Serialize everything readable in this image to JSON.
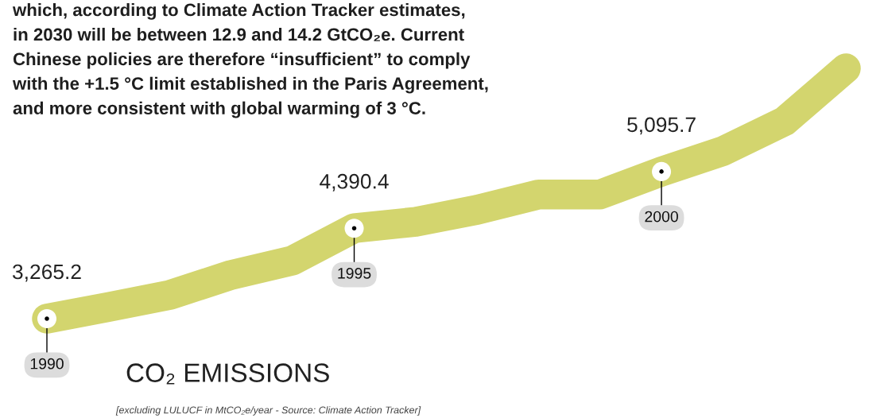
{
  "chart_data": {
    "type": "line",
    "title": "CO₂ EMISSIONS",
    "annotations": [
      "which, according to Climate Action Tracker estimates,\nin 2030 will be between 12.9 and 14.2 GtCO₂e. Current\nChinese policies are therefore “insufficient” to comply\nwith the +1.5 °C limit established in the Paris Agreement,\nand more consistent with global warming of 3 °C.",
      "[excluding LULUCF in MtCO₂e/year - Source: Climate Action Tracker]"
    ],
    "categories": [
      "1990",
      null,
      null,
      null,
      null,
      "1995",
      null,
      null,
      null,
      null,
      "2000",
      null,
      null,
      null
    ],
    "series": [
      {
        "color": "#d3d56e",
        "values": [
          3265.2,
          3410,
          3560,
          3810,
          3990,
          4390.4,
          4470,
          4620,
          4810,
          4810,
          5095.7,
          5350,
          5720,
          6380
        ],
        "value_labels": [
          "3,265.2",
          null,
          null,
          null,
          null,
          "4,390.4",
          null,
          null,
          null,
          null,
          "5,095.7",
          null,
          null,
          null
        ]
      }
    ],
    "line_style": "solid"
  }
}
